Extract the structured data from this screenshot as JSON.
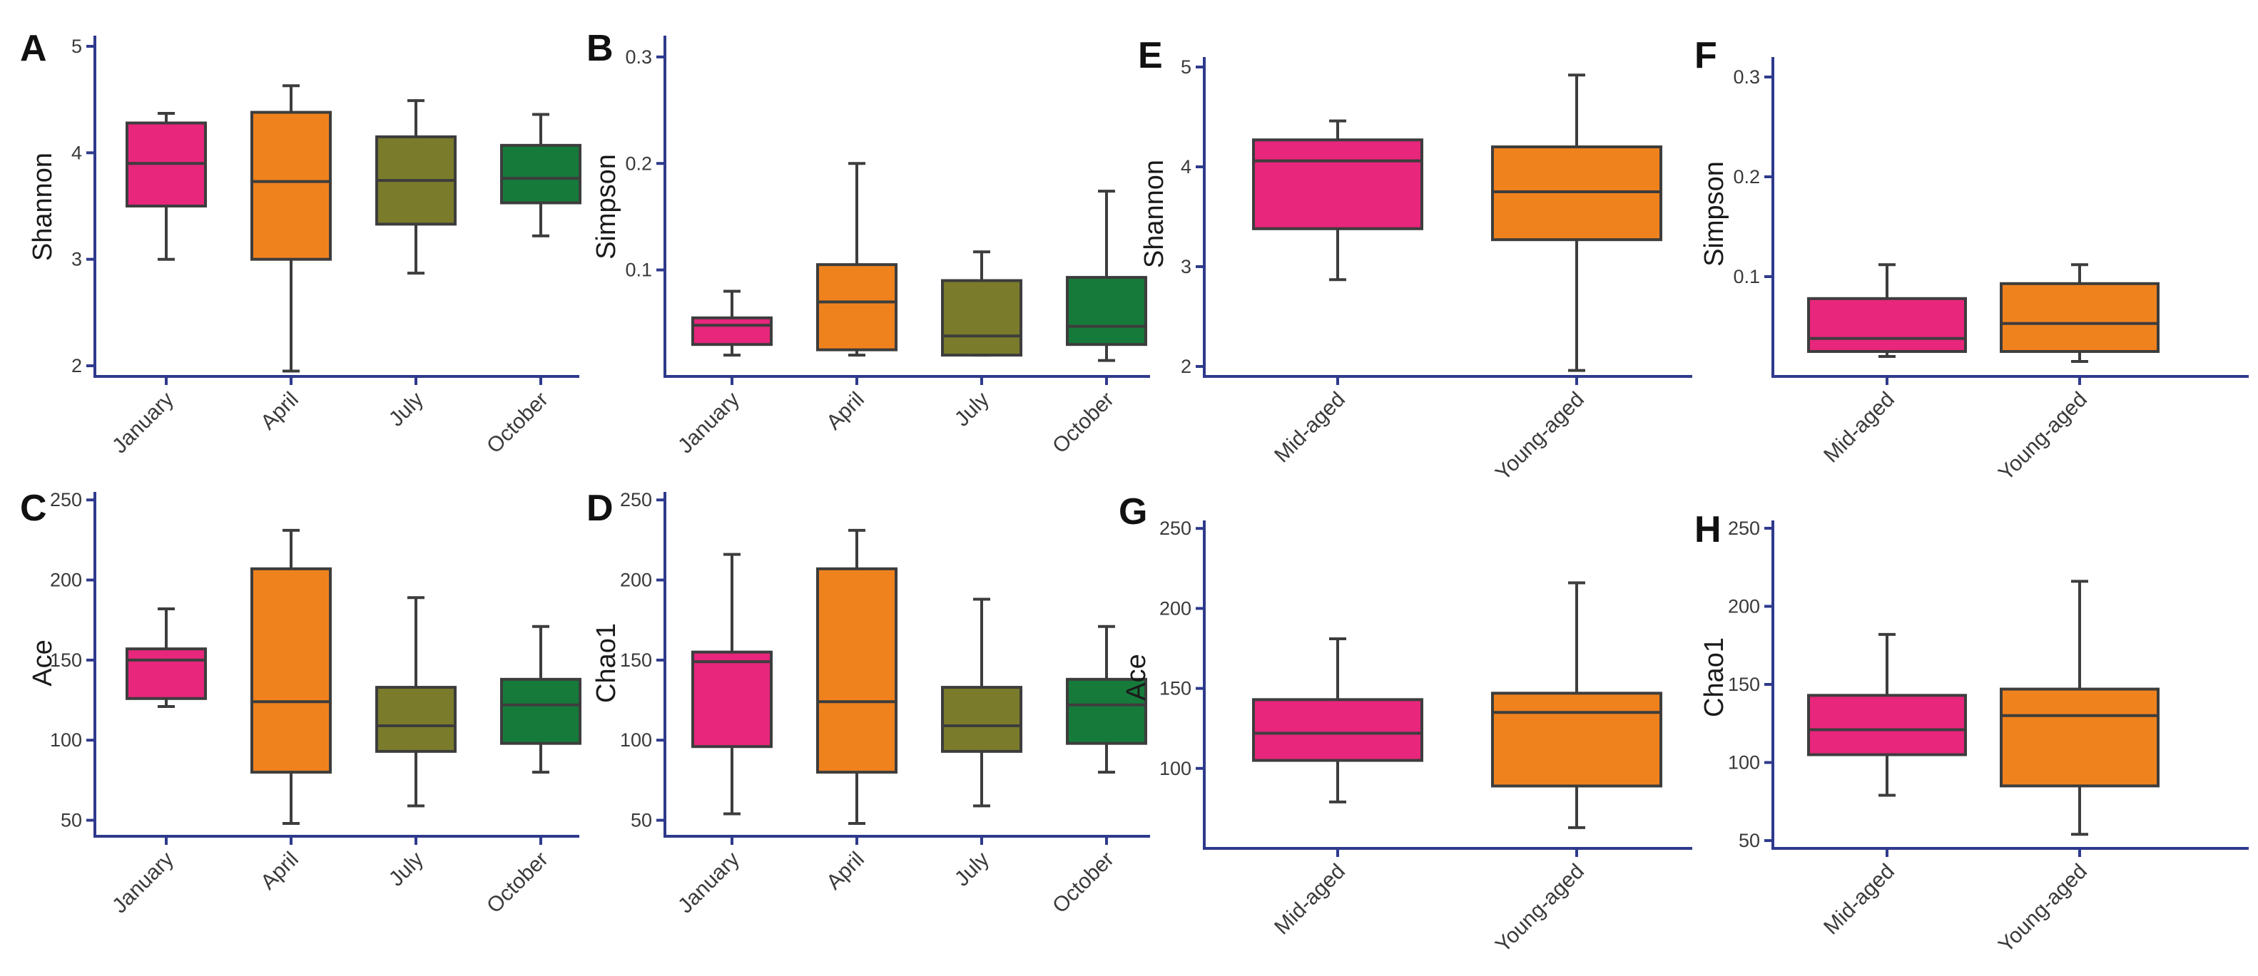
{
  "colors": {
    "January": "#E7267C",
    "April": "#F0821D",
    "July": "#7B7C2B",
    "October": "#167A3B",
    "Mid-aged": "#E7267C",
    "Young-aged": "#F0821D",
    "axis": "#2E3A8C",
    "box_edge": "#3d3d3d"
  },
  "chart_data": [
    {
      "panel": "A",
      "type": "box",
      "ylabel": "Shannon",
      "ylim": [
        1.9,
        5.1
      ],
      "yticks": [
        2,
        3,
        4,
        5
      ],
      "categories": [
        "January",
        "April",
        "July",
        "October"
      ],
      "boxes": [
        {
          "min": 3.0,
          "q1": 3.5,
          "median": 3.9,
          "q3": 4.28,
          "max": 4.37
        },
        {
          "min": 1.95,
          "q1": 3.0,
          "median": 3.73,
          "q3": 4.38,
          "max": 4.63
        },
        {
          "min": 2.87,
          "q1": 3.33,
          "median": 3.74,
          "q3": 4.15,
          "max": 4.49
        },
        {
          "min": 3.22,
          "q1": 3.53,
          "median": 3.76,
          "q3": 4.07,
          "max": 4.36
        }
      ]
    },
    {
      "panel": "B",
      "type": "box",
      "ylabel": "Simpson",
      "ylim": [
        0.0,
        0.32
      ],
      "yticks": [
        0.1,
        0.2,
        0.3
      ],
      "categories": [
        "January",
        "April",
        "July",
        "October"
      ],
      "boxes": [
        {
          "min": 0.02,
          "q1": 0.03,
          "median": 0.048,
          "q3": 0.055,
          "max": 0.08
        },
        {
          "min": 0.02,
          "q1": 0.025,
          "median": 0.07,
          "q3": 0.105,
          "max": 0.2
        },
        {
          "min": 0.02,
          "q1": 0.02,
          "median": 0.038,
          "q3": 0.09,
          "max": 0.117
        },
        {
          "min": 0.015,
          "q1": 0.03,
          "median": 0.047,
          "q3": 0.093,
          "max": 0.174
        }
      ]
    },
    {
      "panel": "C",
      "type": "box",
      "ylabel": "Ace",
      "ylim": [
        40,
        255
      ],
      "yticks": [
        50,
        100,
        150,
        200,
        250
      ],
      "categories": [
        "January",
        "April",
        "July",
        "October"
      ],
      "boxes": [
        {
          "min": 121,
          "q1": 126,
          "median": 150,
          "q3": 157,
          "max": 182
        },
        {
          "min": 48,
          "q1": 80,
          "median": 124,
          "q3": 207,
          "max": 231
        },
        {
          "min": 59,
          "q1": 93,
          "median": 109,
          "q3": 133,
          "max": 189
        },
        {
          "min": 80,
          "q1": 98,
          "median": 122,
          "q3": 138,
          "max": 171
        }
      ]
    },
    {
      "panel": "D",
      "type": "box",
      "ylabel": "Chao1",
      "ylim": [
        40,
        255
      ],
      "yticks": [
        50,
        100,
        150,
        200,
        250
      ],
      "categories": [
        "January",
        "April",
        "July",
        "October"
      ],
      "boxes": [
        {
          "min": 54,
          "q1": 96,
          "median": 149,
          "q3": 155,
          "max": 216
        },
        {
          "min": 48,
          "q1": 80,
          "median": 124,
          "q3": 207,
          "max": 231
        },
        {
          "min": 59,
          "q1": 93,
          "median": 109,
          "q3": 133,
          "max": 188
        },
        {
          "min": 80,
          "q1": 98,
          "median": 122,
          "q3": 138,
          "max": 171
        }
      ]
    },
    {
      "panel": "E",
      "type": "box",
      "ylabel": "Shannon",
      "ylim": [
        1.9,
        5.1
      ],
      "yticks": [
        2,
        3,
        4,
        5
      ],
      "categories": [
        "Mid-aged",
        "Young-aged"
      ],
      "boxes": [
        {
          "min": 2.87,
          "q1": 3.38,
          "median": 4.06,
          "q3": 4.27,
          "max": 4.46
        },
        {
          "min": 1.96,
          "q1": 3.27,
          "median": 3.75,
          "q3": 4.2,
          "max": 4.92
        }
      ]
    },
    {
      "panel": "F",
      "type": "box",
      "ylabel": "Simpson",
      "ylim": [
        0.0,
        0.32
      ],
      "yticks": [
        0.1,
        0.2,
        0.3
      ],
      "categories": [
        "Mid-aged",
        "Young-aged"
      ],
      "boxes": [
        {
          "min": 0.02,
          "q1": 0.025,
          "median": 0.038,
          "q3": 0.078,
          "max": 0.112
        },
        {
          "min": 0.015,
          "q1": 0.025,
          "median": 0.053,
          "q3": 0.093,
          "max": 0.112
        }
      ]
    },
    {
      "panel": "G",
      "type": "box",
      "ylabel": "Ace",
      "ylim": [
        50,
        255
      ],
      "yticks": [
        100,
        150,
        200,
        250
      ],
      "categories": [
        "Mid-aged",
        "Young-aged"
      ],
      "boxes": [
        {
          "min": 79,
          "q1": 105,
          "median": 122,
          "q3": 143,
          "max": 181
        },
        {
          "min": 63,
          "q1": 89,
          "median": 135,
          "q3": 147,
          "max": 216
        }
      ]
    },
    {
      "panel": "H",
      "type": "box",
      "ylabel": "Chao1",
      "ylim": [
        45,
        255
      ],
      "yticks": [
        50,
        100,
        150,
        200,
        250
      ],
      "categories": [
        "Mid-aged",
        "Young-aged"
      ],
      "boxes": [
        {
          "min": 79,
          "q1": 105,
          "median": 121,
          "q3": 143,
          "max": 182
        },
        {
          "min": 54,
          "q1": 85,
          "median": 130,
          "q3": 147,
          "max": 216
        }
      ]
    }
  ]
}
